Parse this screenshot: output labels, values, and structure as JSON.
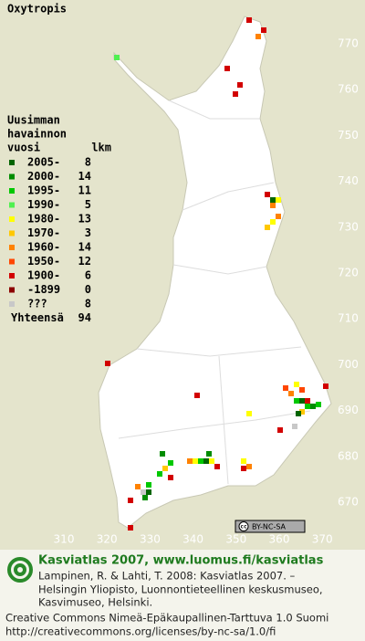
{
  "title": "Oxytropis",
  "legend": {
    "heading": [
      "Uusimman",
      "havainnon"
    ],
    "year_heading": "vuosi",
    "count_heading": "lkm",
    "rows": [
      {
        "label": "2005-",
        "count": 8,
        "color": "#006400"
      },
      {
        "label": "2000-",
        "count": 14,
        "color": "#008c00"
      },
      {
        "label": "1995-",
        "count": 11,
        "color": "#00c800"
      },
      {
        "label": "1990-",
        "count": 5,
        "color": "#50f050"
      },
      {
        "label": "1980-",
        "count": 13,
        "color": "#ffff00"
      },
      {
        "label": "1970-",
        "count": 3,
        "color": "#ffc800"
      },
      {
        "label": "1960-",
        "count": 14,
        "color": "#ff8200"
      },
      {
        "label": "1950-",
        "count": 12,
        "color": "#ff4600"
      },
      {
        "label": "1900-",
        "count": 6,
        "color": "#d20000"
      },
      {
        "label": "-1899",
        "count": 0,
        "color": "#8c0000"
      },
      {
        "label": "???",
        "count": 8,
        "color": "#c8c8c8"
      }
    ],
    "total_label": "Yhteensä",
    "total": 94
  },
  "yticks": [
    670,
    680,
    690,
    700,
    710,
    720,
    730,
    740,
    750,
    760,
    770
  ],
  "xticks": [
    310,
    320,
    330,
    340,
    350,
    360,
    370
  ],
  "cc_badge": "BY-NC-SA",
  "footer": {
    "headline": "Kasviatlas 2007, www.luomus.fi/kasviatlas",
    "citation": [
      "Lampinen, R. & Lahti, T. 2008: Kasviatlas 2007. –",
      "Helsingin Yliopisto, Luonnontieteellinen keskusmuseo,",
      "Kasvimuseo, Helsinki."
    ],
    "license": [
      "Creative Commons Nimeä-Epäkaupallinen-Tarttuva 1.0 Suomi",
      "http://creativecommons.org/licenses/by-nc-sa/1.0/fi"
    ]
  }
}
